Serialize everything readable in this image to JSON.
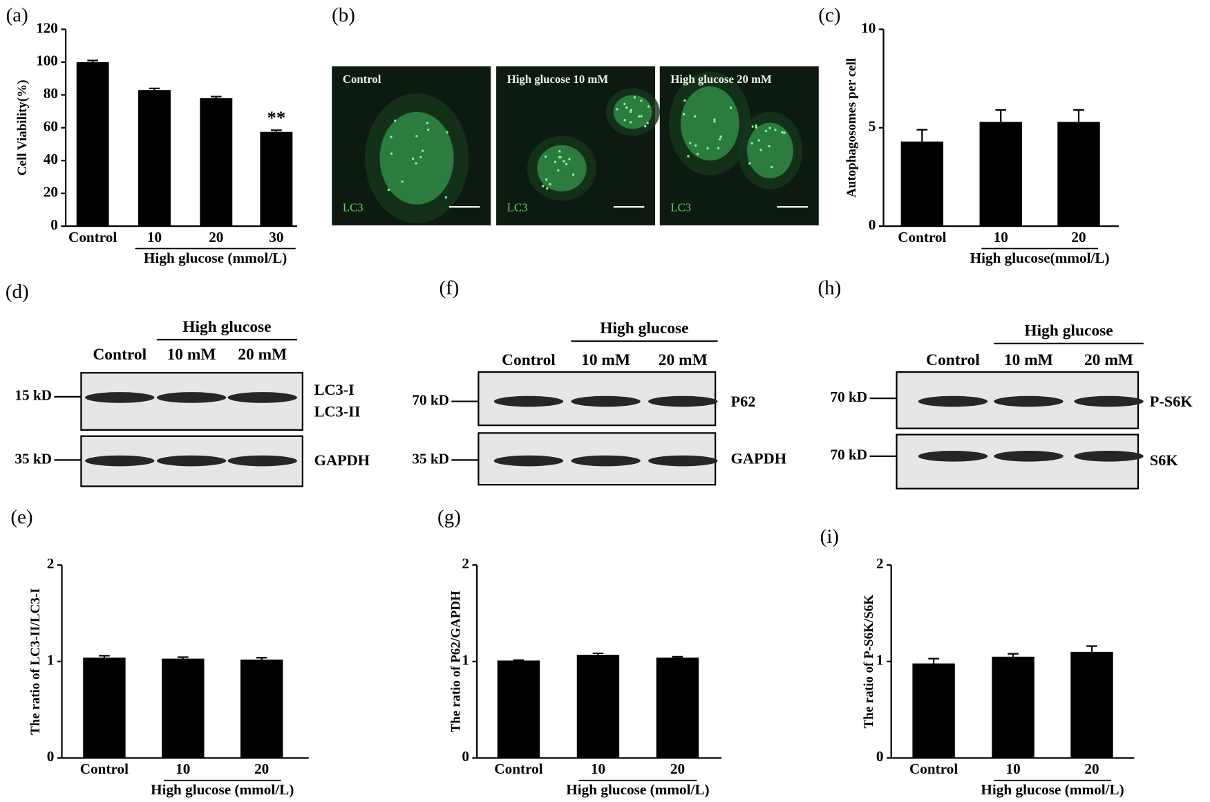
{
  "chart_data": [
    {
      "type": "bar",
      "panel": "(a)",
      "ylabel": "Cell Viability(%)",
      "categories": [
        "Control",
        "10",
        "20",
        "30"
      ],
      "values": [
        100,
        83,
        78,
        57.5
      ],
      "errors": [
        1,
        1,
        1,
        1
      ],
      "color": "#000000",
      "ylim": [
        0,
        120
      ],
      "yticks": [
        0,
        20,
        40,
        60,
        80,
        100,
        120
      ],
      "group_label": "High glucose (mmol/L)",
      "annotation": "**"
    },
    {
      "type": "bar",
      "panel": "(c)",
      "ylabel": "Autophagosomes per cell",
      "categories": [
        "Control",
        "10",
        "20"
      ],
      "values": [
        4.3,
        5.3,
        5.3
      ],
      "errors": [
        0.6,
        0.6,
        0.6
      ],
      "color": "#000000",
      "ylim": [
        0,
        10
      ],
      "yticks": [
        0,
        5,
        10
      ],
      "group_label": "High glucose(mmol/L)"
    },
    {
      "type": "bar",
      "panel": "(e)",
      "ylabel": "The ratio of LC3-II/LC3-I",
      "categories": [
        "Control",
        "10",
        "20"
      ],
      "values": [
        1.04,
        1.03,
        1.02
      ],
      "errors": [
        0.02,
        0.015,
        0.02
      ],
      "color": "#000000",
      "ylim": [
        0,
        2
      ],
      "yticks": [
        0,
        1,
        2
      ],
      "group_label": "High glucose (mmol/L)"
    },
    {
      "type": "bar",
      "panel": "(g)",
      "ylabel": "The ratio of P62/GAPDH",
      "categories": [
        "Control",
        "10",
        "20"
      ],
      "values": [
        1.01,
        1.07,
        1.04
      ],
      "errors": [
        0.005,
        0.015,
        0.01
      ],
      "color": "#000000",
      "ylim": [
        0,
        2
      ],
      "yticks": [
        0,
        1,
        2
      ],
      "group_label": "High glucose (mmol/L)"
    },
    {
      "type": "bar",
      "panel": "(i)",
      "ylabel": "The ratio of P-S6K/S6K",
      "categories": [
        "Control",
        "10",
        "20"
      ],
      "values": [
        0.98,
        1.05,
        1.1
      ],
      "errors": [
        0.05,
        0.03,
        0.06
      ],
      "color": "#000000",
      "ylim": [
        0,
        2
      ],
      "yticks": [
        0,
        1,
        2
      ],
      "group_label": "High glucose (mmol/L)"
    }
  ],
  "micrographs": {
    "panel": "(b)",
    "images": [
      {
        "label": "Control",
        "stain": "LC3"
      },
      {
        "label": "High glucose  10 mM",
        "stain": "LC3"
      },
      {
        "label": "High glucose  20 mM",
        "stain": "LC3"
      }
    ]
  },
  "blots": [
    {
      "panel": "(d)",
      "header": "High glucose",
      "lanes": [
        "Control",
        "10 mM",
        "20 mM"
      ],
      "markers": [
        "15 kD",
        "35 kD"
      ],
      "labels": [
        "LC3-I",
        "LC3-II",
        "GAPDH"
      ]
    },
    {
      "panel": "(f)",
      "header": "High glucose",
      "lanes": [
        "Control",
        "10 mM",
        "20 mM"
      ],
      "markers": [
        "70 kD",
        "35 kD"
      ],
      "labels": [
        "P62",
        "GAPDH"
      ]
    },
    {
      "panel": "(h)",
      "header": "High glucose",
      "lanes": [
        "Control",
        "10 mM",
        "20 mM"
      ],
      "markers": [
        "70 kD",
        "70 kD"
      ],
      "labels": [
        "P-S6K",
        "S6K"
      ]
    }
  ]
}
